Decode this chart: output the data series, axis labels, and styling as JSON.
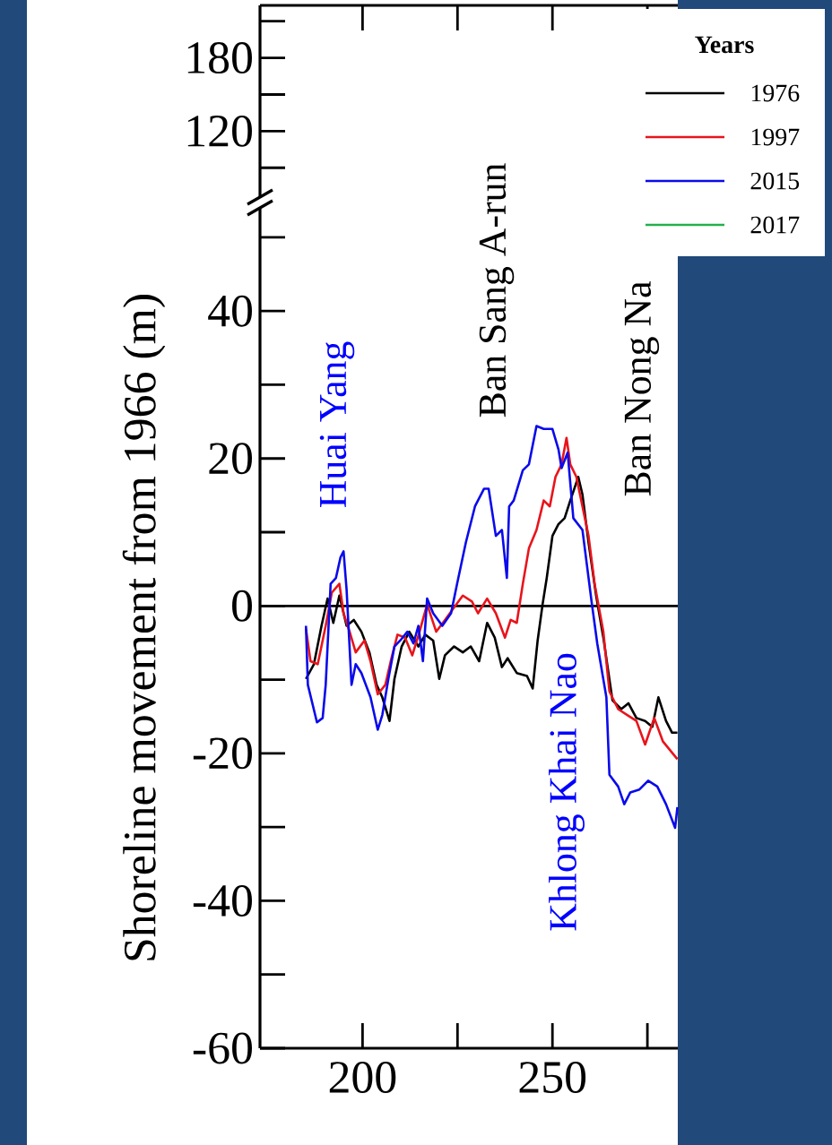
{
  "chart_data": [
    {
      "type": "line",
      "xlim": [
        173,
        283
      ],
      "xticks": [
        {
          "value": 200,
          "label": null
        },
        {
          "value": 225,
          "label": null
        },
        {
          "value": 250,
          "label": null
        },
        {
          "value": 275,
          "label": null
        }
      ],
      "ylim": [
        66,
        223
      ],
      "yticks": [
        {
          "value": 90,
          "label": null
        },
        120,
        {
          "value": 150,
          "label": null
        },
        180,
        {
          "value": 210,
          "label": null
        }
      ],
      "tick_labels": "y"
    },
    {
      "type": "line",
      "ylabel": "Shoreline movement from 1966 (m)",
      "legend_title": "Years",
      "legend": "top right",
      "xlim": [
        173,
        283
      ],
      "xticks": [
        200,
        {
          "value": 225,
          "label": null
        },
        250,
        {
          "value": 275,
          "label": null
        }
      ],
      "ylim": [
        -60,
        54
      ],
      "yticks": [
        -60,
        {
          "value": -50,
          "label": null
        },
        -40,
        {
          "value": -30,
          "label": null
        },
        -20,
        {
          "value": -10,
          "label": null
        },
        0,
        {
          "value": 10,
          "label": null
        },
        20,
        {
          "value": 30,
          "label": null
        },
        40,
        {
          "value": 50,
          "label": null
        }
      ],
      "ref_lines": [
        {
          "axis": "y",
          "value": 0,
          "color": "#000000"
        }
      ],
      "annotations": [
        "Huai Yang",
        "Ban Sang A-run",
        "Ban Nong Na",
        "Khlong Khai Nao"
      ],
      "series": [
        {
          "name": "1976",
          "color": "#000000",
          "x": [
            185.1,
            187.2,
            189.2,
            190.8,
            192.3,
            193.9,
            195.8,
            197.7,
            199.7,
            201.8,
            203.7,
            205.2,
            207.1,
            208.4,
            210.3,
            212.3,
            214.7,
            216.5,
            218.6,
            220.2,
            221.7,
            224.1,
            226.4,
            228.5,
            230.7,
            232.8,
            234.8,
            236.7,
            238.2,
            240.6,
            243.3,
            244.8,
            246.1,
            247.4,
            248.5,
            250.0,
            251.6,
            253.2,
            254.7,
            256.8,
            257.9,
            259.5,
            261.5,
            263.4,
            265.8,
            268.1,
            270.0,
            272.1,
            274.4,
            276.3,
            277.9,
            279.9,
            281.5,
            282.9
          ],
          "values": [
            -9.9,
            -7.9,
            -2.7,
            1.0,
            -2.3,
            1.4,
            -2.7,
            -1.9,
            -3.5,
            -6.3,
            -10.7,
            -12.4,
            -15.6,
            -9.9,
            -5.5,
            -3.5,
            -5.5,
            -3.9,
            -4.7,
            -9.9,
            -6.7,
            -5.5,
            -6.3,
            -5.5,
            -7.5,
            -2.3,
            -4.3,
            -8.3,
            -7.1,
            -9.1,
            -9.5,
            -11.2,
            -4.7,
            0.2,
            3.8,
            9.5,
            11.1,
            11.9,
            14.3,
            17.5,
            15.1,
            8.6,
            1.4,
            -4.3,
            -12.8,
            -14.0,
            -13.2,
            -15.2,
            -15.6,
            -16.4,
            -12.4,
            -15.6,
            -17.2,
            -17.2
          ]
        },
        {
          "name": "1997",
          "color": "#e8141c",
          "x": [
            185.1,
            186.3,
            188.2,
            190.3,
            191.9,
            193.9,
            195.0,
            196.6,
            198.2,
            200.5,
            202.1,
            204.0,
            206.0,
            207.6,
            209.2,
            211.2,
            213.1,
            215.0,
            217.0,
            219.4,
            221.7,
            224.1,
            226.4,
            228.8,
            230.4,
            232.8,
            235.1,
            237.5,
            239.0,
            240.6,
            242.2,
            243.8,
            245.8,
            247.7,
            249.3,
            250.8,
            252.4,
            253.7,
            254.7,
            256.3,
            257.9,
            259.5,
            261.1,
            263.4,
            265.0,
            267.3,
            269.7,
            272.1,
            274.4,
            276.8,
            279.1,
            282.9
          ],
          "values": [
            -3.1,
            -7.5,
            -7.9,
            -2.7,
            1.8,
            3.0,
            -1.0,
            -3.5,
            -6.3,
            -4.7,
            -7.5,
            -12.0,
            -10.7,
            -7.1,
            -3.9,
            -4.3,
            -6.7,
            -3.5,
            0.2,
            -3.5,
            -1.9,
            -0.2,
            1.4,
            0.6,
            -1.0,
            1.0,
            -1.0,
            -4.3,
            -1.9,
            -2.3,
            3.0,
            7.8,
            10.3,
            14.3,
            13.5,
            17.5,
            19.2,
            22.8,
            19.2,
            17.5,
            13.5,
            9.5,
            3.0,
            -3.5,
            -11.6,
            -14.0,
            -14.8,
            -15.6,
            -18.8,
            -15.2,
            -18.4,
            -20.8
          ]
        },
        {
          "name": "2015",
          "color": "#0a0aeb",
          "x": [
            185.1,
            185.6,
            188.0,
            189.5,
            190.3,
            191.6,
            193.0,
            194.2,
            195.0,
            195.8,
            197.1,
            198.2,
            199.7,
            202.1,
            204.0,
            205.2,
            206.8,
            208.4,
            209.9,
            211.8,
            213.4,
            214.7,
            215.9,
            217.0,
            218.6,
            221.0,
            223.3,
            224.9,
            227.2,
            229.6,
            232.0,
            233.2,
            235.1,
            236.7,
            238.0,
            238.6,
            239.8,
            242.2,
            243.8,
            245.8,
            247.7,
            250.0,
            251.6,
            252.4,
            254.0,
            255.5,
            257.9,
            260.3,
            261.8,
            264.2,
            265.0,
            267.3,
            268.9,
            270.5,
            272.9,
            275.2,
            277.6,
            279.9,
            282.3,
            282.9
          ],
          "values": [
            -2.7,
            -10.7,
            -15.8,
            -15.2,
            -10.7,
            3.0,
            3.8,
            6.6,
            7.4,
            2.2,
            -10.7,
            -7.9,
            -9.1,
            -12.4,
            -16.8,
            -14.8,
            -9.9,
            -5.5,
            -4.7,
            -3.5,
            -5.1,
            -2.7,
            -7.5,
            1.0,
            -1.0,
            -2.7,
            -1.0,
            3.0,
            8.6,
            13.5,
            15.9,
            15.9,
            9.5,
            10.3,
            3.8,
            13.5,
            14.3,
            18.4,
            19.2,
            24.4,
            24.0,
            24.0,
            21.2,
            18.7,
            20.8,
            11.9,
            10.3,
            0.6,
            -5.1,
            -12.4,
            -22.9,
            -24.5,
            -26.9,
            -25.3,
            -24.9,
            -23.7,
            -24.5,
            -26.9,
            -30.1,
            -27.3
          ]
        },
        {
          "name": "2017",
          "color": "#22b14c"
        }
      ]
    }
  ]
}
